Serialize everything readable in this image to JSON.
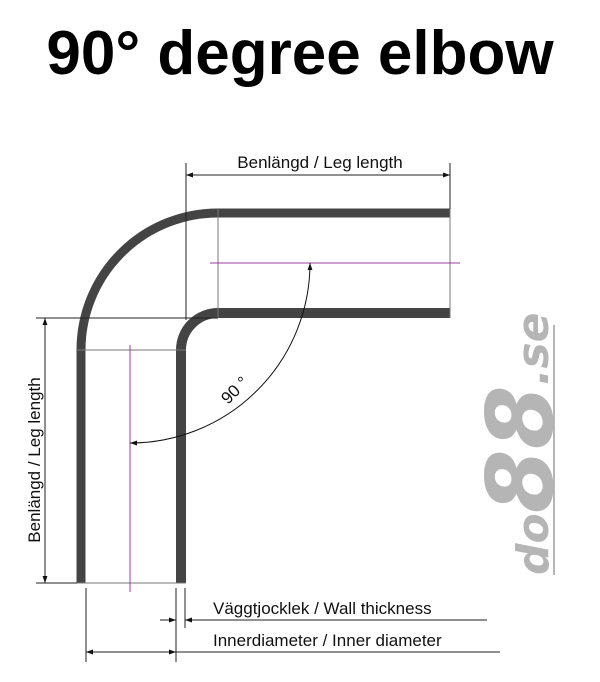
{
  "title": "90° degree elbow",
  "labels": {
    "leg_length_top": "Benlängd / Leg length",
    "leg_length_side": "Benlängd / Leg length",
    "angle": "90 °",
    "wall_thickness": "Väggtjocklek / Wall thickness",
    "inner_diameter": "Innerdiameter / Inner diameter"
  },
  "logo": {
    "text": "do88.se",
    "color": "#b5b5b5"
  },
  "colors": {
    "pipe": "#444444",
    "centerline": "#9b3fa0",
    "dimension": "#222222"
  }
}
